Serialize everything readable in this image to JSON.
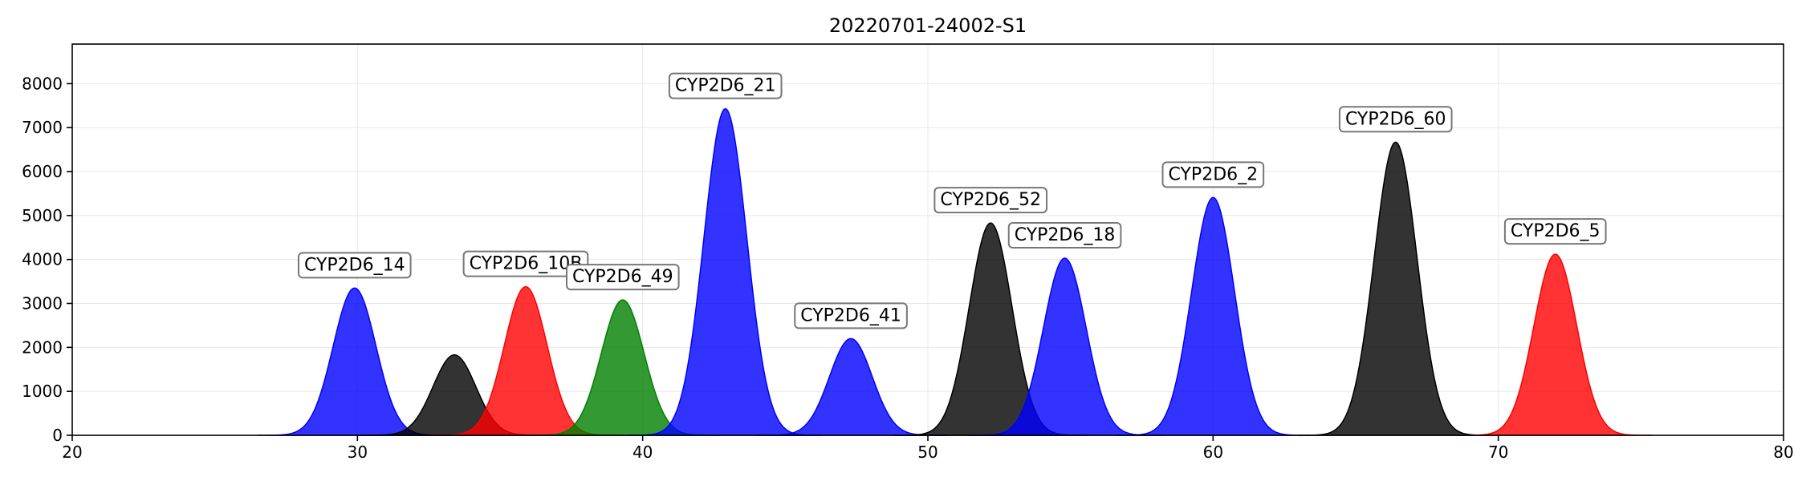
{
  "chart_data": {
    "type": "area",
    "title": "20220701-24002-S1",
    "xlabel": "",
    "ylabel": "",
    "xlim": [
      20,
      80
    ],
    "ylim": [
      0,
      8900
    ],
    "x_ticks": [
      20,
      30,
      40,
      50,
      60,
      70,
      80
    ],
    "y_ticks": [
      0,
      1000,
      2000,
      3000,
      4000,
      5000,
      6000,
      7000,
      8000
    ],
    "grid": true,
    "series": [
      {
        "label": "CYP2D6_14",
        "center": 29.9,
        "height": 3350,
        "sigma": 0.75,
        "color": "#0000ff"
      },
      {
        "label": "",
        "center": 33.4,
        "height": 1830,
        "sigma": 0.75,
        "color": "#000000"
      },
      {
        "label": "CYP2D6_10B",
        "center": 35.9,
        "height": 3380,
        "sigma": 0.75,
        "color": "#ff0000"
      },
      {
        "label": "CYP2D6_49",
        "center": 39.3,
        "height": 3080,
        "sigma": 0.75,
        "color": "#008000"
      },
      {
        "label": "CYP2D6_21",
        "center": 42.9,
        "height": 7430,
        "sigma": 0.75,
        "color": "#0000ff"
      },
      {
        "label": "CYP2D6_41",
        "center": 47.3,
        "height": 2200,
        "sigma": 0.75,
        "color": "#0000ff"
      },
      {
        "label": "CYP2D6_52",
        "center": 52.2,
        "height": 4830,
        "sigma": 0.75,
        "color": "#000000"
      },
      {
        "label": "CYP2D6_18",
        "center": 54.8,
        "height": 4030,
        "sigma": 0.75,
        "color": "#0000ff"
      },
      {
        "label": "CYP2D6_2",
        "center": 60.0,
        "height": 5410,
        "sigma": 0.75,
        "color": "#0000ff"
      },
      {
        "label": "CYP2D6_60",
        "center": 66.4,
        "height": 6670,
        "sigma": 0.75,
        "color": "#000000"
      },
      {
        "label": "CYP2D6_5",
        "center": 72.0,
        "height": 4120,
        "sigma": 0.75,
        "color": "#ff0000"
      }
    ]
  }
}
